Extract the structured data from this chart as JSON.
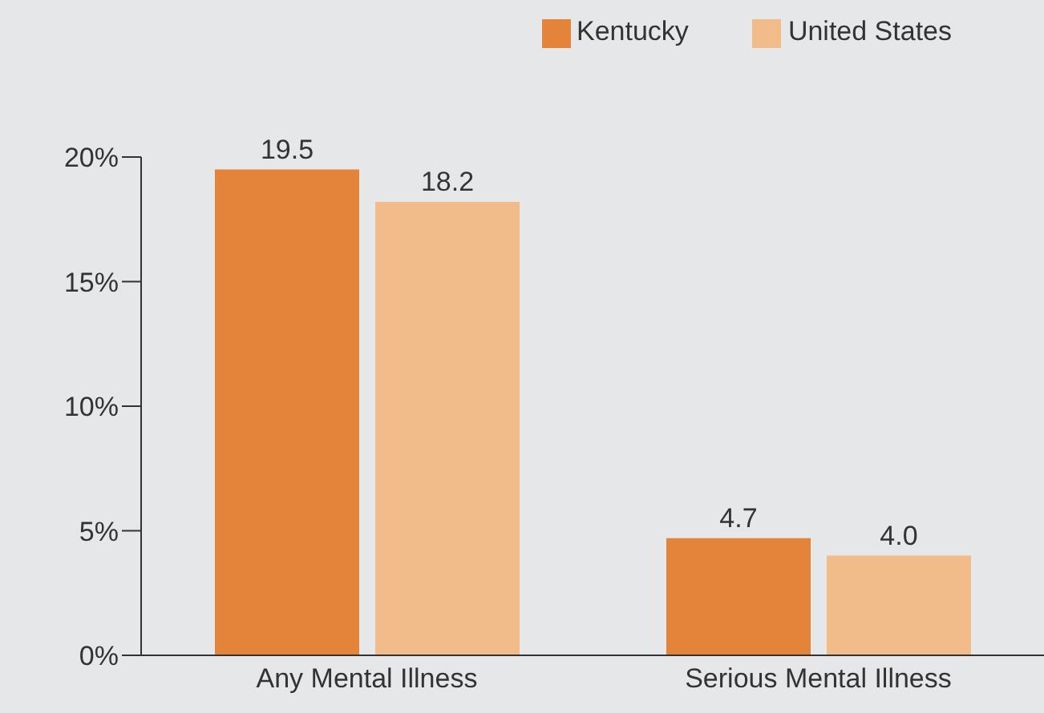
{
  "chart_data": {
    "type": "bar",
    "categories": [
      "Any Mental Illness",
      "Serious Mental Illness"
    ],
    "series": [
      {
        "name": "Kentucky",
        "color": "#e3843a",
        "values": [
          19.5,
          4.7
        ],
        "value_labels": [
          "19.5",
          "4.7"
        ]
      },
      {
        "name": "United States",
        "color": "#f2bb8a",
        "values": [
          18.2,
          4.0
        ],
        "value_labels": [
          "18.2",
          "4.0"
        ]
      }
    ],
    "ylim": [
      0,
      20
    ],
    "yticks": [
      {
        "value": 0,
        "label": "0%"
      },
      {
        "value": 5,
        "label": "5%"
      },
      {
        "value": 10,
        "label": "10%"
      },
      {
        "value": 15,
        "label": "15%"
      },
      {
        "value": 20,
        "label": "20%"
      }
    ],
    "grid": false,
    "legend": "top"
  }
}
